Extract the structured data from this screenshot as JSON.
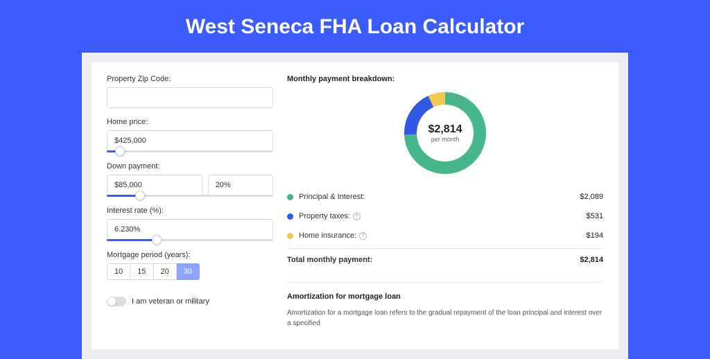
{
  "title": "West Seneca FHA Loan Calculator",
  "colors": {
    "brand": "#3b5bfd",
    "cardBg": "#ebedf0",
    "green": "#46b58a",
    "blue": "#3258e8",
    "yellow": "#f2c94c"
  },
  "form": {
    "zip": {
      "label": "Property Zip Code:",
      "value": ""
    },
    "homePrice": {
      "label": "Home price:",
      "value": "$425,000",
      "sliderPct": 8
    },
    "downPayment": {
      "label": "Down payment:",
      "value": "$85,000",
      "pct": "20%",
      "sliderPct": 20
    },
    "interestRate": {
      "label": "Interest rate (%):",
      "value": "6.230%",
      "sliderPct": 30
    },
    "mortgagePeriod": {
      "label": "Mortgage period (years):",
      "options": [
        "10",
        "15",
        "20",
        "30"
      ],
      "active": "30"
    },
    "veteran": {
      "label": "I am veteran or military",
      "value": false
    }
  },
  "breakdown": {
    "title": "Monthly payment breakdown:",
    "amount": "$2,814",
    "sub": "per month",
    "items": [
      {
        "label": "Principal & Interest:",
        "value": "$2,089",
        "color": "#46b58a",
        "pct": 74.2,
        "info": false
      },
      {
        "label": "Property taxes:",
        "value": "$531",
        "color": "#3258e8",
        "pct": 18.9,
        "info": true
      },
      {
        "label": "Home insurance:",
        "value": "$194",
        "color": "#f2c94c",
        "pct": 6.9,
        "info": true
      }
    ],
    "total": {
      "label": "Total monthly payment:",
      "value": "$2,814"
    }
  },
  "amort": {
    "title": "Amortization for mortgage loan",
    "text": "Amortization for a mortgage loan refers to the gradual repayment of the loan principal and interest over a specified"
  },
  "chart": {
    "type": "donut",
    "radius": 50,
    "strokeWidth": 18,
    "background": "#ffffff"
  }
}
